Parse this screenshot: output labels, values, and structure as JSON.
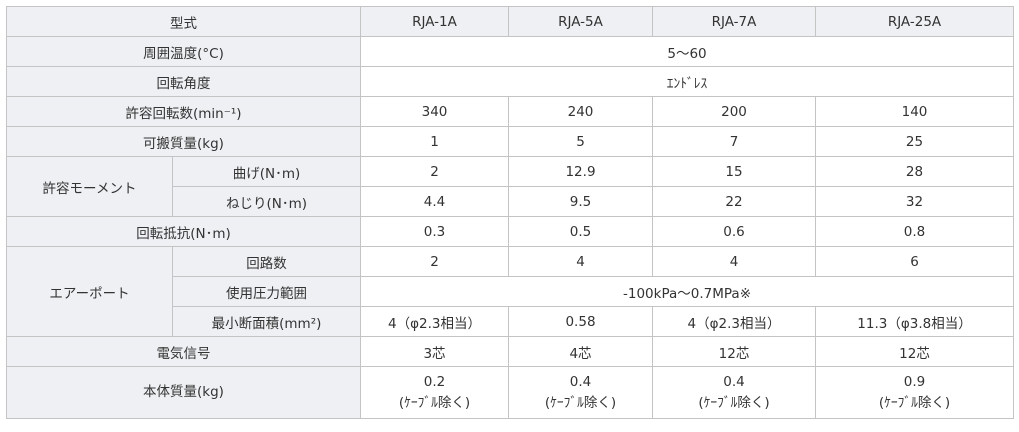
{
  "table": {
    "header": [
      "型式",
      "RJA-1A",
      "RJA-5A",
      "RJA-7A",
      "RJA-25A"
    ],
    "rows": [
      {
        "label": "周囲温度(°C)",
        "cells": [
          "5〜60"
        ]
      },
      {
        "label": "回転角度",
        "cells": [
          "ｴﾝﾄﾞﾚｽ"
        ]
      },
      {
        "label": "許容回転数(min⁻¹)",
        "cells": [
          "340",
          "240",
          "200",
          "140"
        ]
      },
      {
        "label": "可搬質量(kg)",
        "cells": [
          "1",
          "5",
          "7",
          "25"
        ]
      },
      {
        "group": "許容モーメント",
        "subrows": [
          {
            "label": "曲げ(N･m)",
            "cells": [
              "2",
              "12.9",
              "15",
              "28"
            ]
          },
          {
            "label": "ねじり(N･m)",
            "cells": [
              "4.4",
              "9.5",
              "22",
              "32"
            ]
          }
        ]
      },
      {
        "label": "回転抵抗(N･m)",
        "cells": [
          "0.3",
          "0.5",
          "0.6",
          "0.8"
        ]
      },
      {
        "group": "エアーポート",
        "subrows": [
          {
            "label": "回路数",
            "cells": [
              "2",
              "4",
              "4",
              "6"
            ]
          },
          {
            "label": "使用圧力範囲",
            "cells": [
              "-100kPa〜0.7MPa※"
            ]
          },
          {
            "label": "最小断面積(mm²)",
            "cells": [
              "4（φ2.3相当）",
              "0.58",
              "4（φ2.3相当）",
              "11.3（φ3.8相当）"
            ]
          }
        ]
      },
      {
        "label": "電気信号",
        "cells": [
          "3芯",
          "4芯",
          "12芯",
          "12芯"
        ]
      },
      {
        "label": "本体質量(kg)",
        "cells": [
          [
            "0.2",
            "(ｹｰﾌﾞﾙ除く)"
          ],
          [
            "0.4",
            "(ｹｰﾌﾞﾙ除く)"
          ],
          [
            "0.4",
            "(ｹｰﾌﾞﾙ除く)"
          ],
          [
            "0.9",
            "(ｹｰﾌﾞﾙ除く)"
          ]
        ]
      }
    ]
  }
}
